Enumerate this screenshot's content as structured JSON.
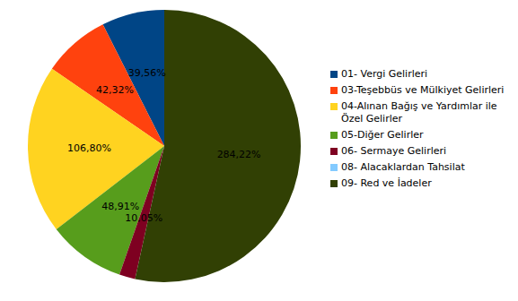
{
  "chart_data": {
    "type": "pie",
    "categories": [
      "01- Vergi Gelirleri",
      "03-Teşebbüs ve Mülkiyet Gelirleri",
      "04-Alınan Bağış ve Yardımlar ile Özel Gelirler",
      "05-Diğer Gelirler",
      "06- Sermaye Gelirleri",
      "08- Alacaklardan Tahsilat",
      "09- Red ve İadeler"
    ],
    "values": [
      39.56,
      42.32,
      106.8,
      48.91,
      10.05,
      0,
      284.22
    ],
    "value_labels": [
      "39,56%",
      "42,32%",
      "106,80%",
      "48,91%",
      "10,05%",
      null,
      "284,22%"
    ],
    "colors": [
      "#004586",
      "#ff420e",
      "#ffd320",
      "#579d1c",
      "#7e0021",
      "#83caff",
      "#314004"
    ],
    "data_labels": true,
    "legend": "right"
  }
}
